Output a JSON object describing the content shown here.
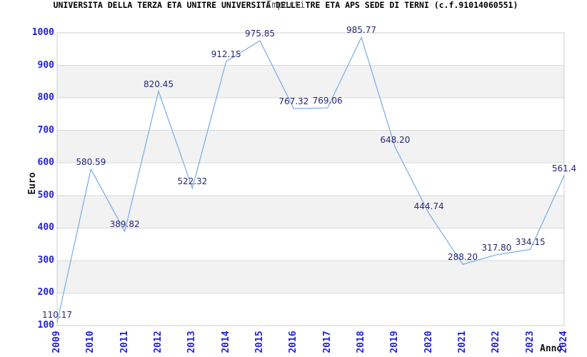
{
  "header": {
    "title": "UNIVERSITA DELLA TERZA ETA UNITRE UNIVERSITA DELLE TRE ETA APS SEDE DI TERNI (c.f.91014060551)",
    "subtitle": "Importi"
  },
  "chart_data": {
    "type": "line",
    "title": "Importi",
    "xlabel": "Anno",
    "ylabel": "Euro",
    "ylim": [
      100,
      1000
    ],
    "ytick_step": 100,
    "grid": "horizontal-with-alternating-bands",
    "legend": "none",
    "markers": "none",
    "categories": [
      "2009",
      "2010",
      "2011",
      "2012",
      "2013",
      "2014",
      "2015",
      "2016",
      "2017",
      "2018",
      "2019",
      "2020",
      "2021",
      "2022",
      "2023",
      "2024"
    ],
    "series": [
      {
        "name": "Importi",
        "values": [
          110.17,
          580.59,
          389.82,
          820.45,
          522.32,
          912.15,
          975.85,
          767.32,
          769.06,
          985.77,
          648.2,
          444.74,
          288.2,
          317.8,
          334.15,
          561.4
        ],
        "point_labels": [
          "110.17",
          "580.59",
          "389.82",
          "820.45",
          "522.32",
          "912.15",
          "975.85",
          "767.32",
          "769.06",
          "985.77",
          "648.20",
          "444.74",
          "288.20",
          "317.80",
          "334.15",
          "561.4"
        ]
      }
    ],
    "colors": {
      "line": "#76ace6",
      "tick_label": "#2222dd",
      "point_label": "#262678",
      "band": "#f2f2f2",
      "gridline": "#d9d9d9",
      "plot_border": "#cccccc",
      "title": "#000000",
      "subtitle": "#555555",
      "axis_title": "#111111",
      "background": "#ffffff"
    }
  }
}
